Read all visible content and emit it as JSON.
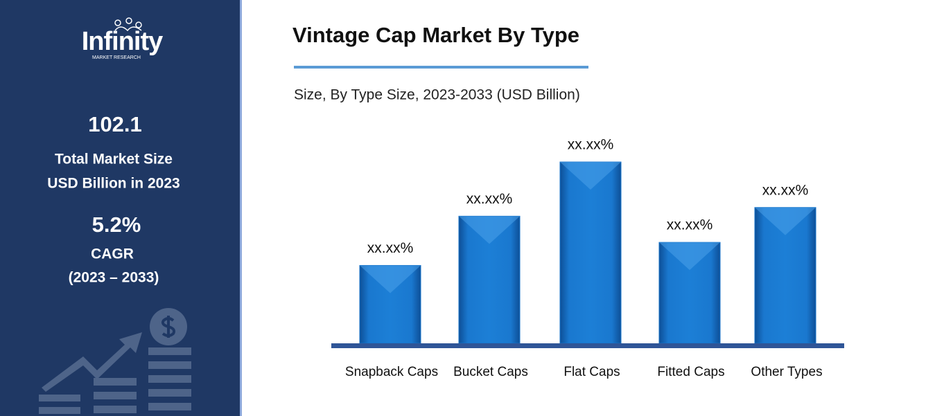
{
  "sidebar": {
    "logo": "Infinity",
    "logo_tagline": "MARKET RESEARCH",
    "market_size": "102.1",
    "market_size_label": "Total Market Size",
    "market_size_unit": "USD Billion in 2023",
    "cagr": "5.2%",
    "cagr_label": "CAGR",
    "cagr_period": "(2023 – 2033)"
  },
  "chart_data": {
    "type": "bar",
    "title": "Vintage Cap Market By Type",
    "subtitle": "Size, By Type Size, 2023-2033 (USD Billion)",
    "categories": [
      "Snapback Caps",
      "Bucket Caps",
      "Flat Caps",
      "Fitted Caps",
      "Other Types"
    ],
    "values": [
      12.5,
      20.4,
      29.1,
      16.2,
      21.8
    ],
    "value_labels": [
      "xx.xx%",
      "xx.xx%",
      "xx.xx%",
      "xx.xx%",
      "xx.xx%"
    ],
    "color": "#1672c8"
  }
}
